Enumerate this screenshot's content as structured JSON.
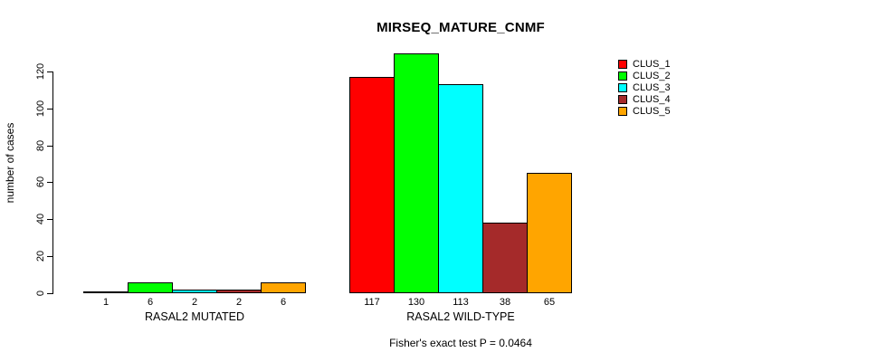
{
  "chart_data": {
    "type": "bar",
    "title": "MIRSEQ_MATURE_CNMF",
    "ylabel": "number of cases",
    "footer": "Fisher's exact test P = 0.0464",
    "categories": [
      "RASAL2 MUTATED",
      "RASAL2 WILD-TYPE"
    ],
    "series": [
      {
        "name": "CLUS_1",
        "color": "#FF0000",
        "values": [
          1,
          117
        ]
      },
      {
        "name": "CLUS_2",
        "color": "#00FF00",
        "values": [
          6,
          130
        ]
      },
      {
        "name": "CLUS_3",
        "color": "#00FFFF",
        "values": [
          2,
          113
        ]
      },
      {
        "name": "CLUS_4",
        "color": "#A52A2A",
        "values": [
          2,
          38
        ]
      },
      {
        "name": "CLUS_5",
        "color": "#FFA500",
        "values": [
          6,
          65
        ]
      }
    ],
    "bar_value_labels": true,
    "yticks": [
      0,
      20,
      40,
      60,
      80,
      100,
      120
    ],
    "ylim": [
      0,
      130
    ],
    "grid": false,
    "legend_position": "top-right",
    "axis_color": "#000000",
    "background_color": "#FFFFFF"
  }
}
